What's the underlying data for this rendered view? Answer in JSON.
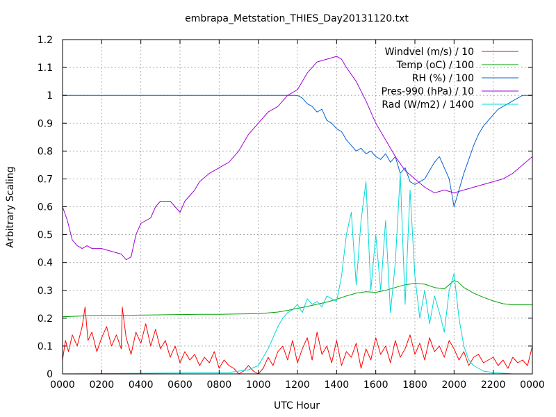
{
  "chart_data": {
    "type": "line",
    "title": "embrapa_Metstation_THIES_Day20131120.txt",
    "xlabel": "UTC Hour",
    "ylabel": "Arbitrary Scaling",
    "xlim": [
      0,
      24
    ],
    "ylim": [
      0,
      1.2
    ],
    "grid": true,
    "legend_position": "top-right",
    "x_tick_labels": [
      "0000",
      "0200",
      "0400",
      "0600",
      "0800",
      "1000",
      "1200",
      "1400",
      "1600",
      "1800",
      "2000",
      "2200",
      "0000"
    ],
    "y_tick_labels": [
      "0",
      "0.1",
      "0.2",
      "0.3",
      "0.4",
      "0.5",
      "0.6",
      "0.7",
      "0.8",
      "0.9",
      "1",
      "1.1",
      "1.2"
    ],
    "series": [
      {
        "name": "Windvel (m/s) / 10",
        "color": "#ff0000",
        "x": [
          0,
          0.15,
          0.3,
          0.5,
          0.75,
          1.0,
          1.15,
          1.3,
          1.5,
          1.75,
          2.0,
          2.25,
          2.5,
          2.75,
          3.0,
          3.05,
          3.25,
          3.5,
          3.75,
          4.0,
          4.25,
          4.5,
          4.75,
          5.0,
          5.25,
          5.5,
          5.75,
          6.0,
          6.25,
          6.5,
          6.75,
          7.0,
          7.25,
          7.5,
          7.75,
          8.0,
          8.25,
          8.5,
          8.75,
          9.0,
          9.25,
          9.5,
          9.75,
          10.0,
          10.25,
          10.5,
          10.75,
          11.0,
          11.25,
          11.5,
          11.75,
          12.0,
          12.25,
          12.5,
          12.75,
          13.0,
          13.25,
          13.5,
          13.75,
          14.0,
          14.25,
          14.5,
          14.75,
          15.0,
          15.25,
          15.5,
          15.75,
          16.0,
          16.25,
          16.5,
          16.75,
          17.0,
          17.25,
          17.5,
          17.75,
          18.0,
          18.25,
          18.5,
          18.75,
          19.0,
          19.25,
          19.5,
          19.75,
          20.0,
          20.25,
          20.5,
          20.75,
          21.0,
          21.25,
          21.5,
          21.75,
          22.0,
          22.25,
          22.5,
          22.75,
          23.0,
          23.25,
          23.5,
          23.75,
          24.0
        ],
        "y": [
          0.05,
          0.12,
          0.08,
          0.14,
          0.1,
          0.17,
          0.24,
          0.12,
          0.15,
          0.08,
          0.13,
          0.17,
          0.1,
          0.14,
          0.09,
          0.24,
          0.13,
          0.07,
          0.15,
          0.11,
          0.18,
          0.1,
          0.16,
          0.09,
          0.12,
          0.06,
          0.1,
          0.04,
          0.08,
          0.05,
          0.07,
          0.03,
          0.06,
          0.04,
          0.08,
          0.02,
          0.05,
          0.03,
          0.02,
          0.0,
          0.01,
          0.03,
          0.01,
          0.0,
          0.02,
          0.06,
          0.03,
          0.08,
          0.1,
          0.05,
          0.12,
          0.04,
          0.09,
          0.13,
          0.05,
          0.15,
          0.07,
          0.1,
          0.04,
          0.12,
          0.03,
          0.08,
          0.06,
          0.11,
          0.02,
          0.09,
          0.05,
          0.13,
          0.07,
          0.1,
          0.04,
          0.12,
          0.06,
          0.09,
          0.14,
          0.07,
          0.11,
          0.05,
          0.13,
          0.08,
          0.1,
          0.06,
          0.12,
          0.09,
          0.05,
          0.08,
          0.03,
          0.06,
          0.07,
          0.04,
          0.05,
          0.06,
          0.03,
          0.05,
          0.02,
          0.06,
          0.04,
          0.05,
          0.03,
          0.1
        ]
      },
      {
        "name": "Temp (oC) / 100",
        "color": "#00a000",
        "x": [
          0,
          1,
          2,
          3,
          4,
          5,
          6,
          7,
          8,
          9,
          10,
          11,
          11.5,
          12,
          12.5,
          13,
          13.5,
          14,
          14.5,
          15,
          15.5,
          16,
          16.5,
          17,
          17.5,
          18,
          18.5,
          19,
          19.5,
          20,
          20.2,
          20.5,
          21,
          21.5,
          22,
          22.5,
          23,
          23.5,
          24
        ],
        "y": [
          0.205,
          0.208,
          0.21,
          0.21,
          0.211,
          0.212,
          0.213,
          0.214,
          0.214,
          0.215,
          0.216,
          0.222,
          0.228,
          0.235,
          0.242,
          0.25,
          0.258,
          0.268,
          0.28,
          0.29,
          0.295,
          0.293,
          0.3,
          0.31,
          0.32,
          0.325,
          0.322,
          0.31,
          0.305,
          0.335,
          0.33,
          0.31,
          0.29,
          0.275,
          0.262,
          0.252,
          0.248,
          0.248,
          0.248
        ]
      },
      {
        "name": "RH (%) / 100",
        "color": "#0060d0",
        "x": [
          0,
          12,
          12.25,
          12.5,
          12.75,
          13.0,
          13.25,
          13.5,
          13.75,
          14.0,
          14.25,
          14.5,
          14.75,
          15.0,
          15.25,
          15.5,
          15.75,
          16.0,
          16.25,
          16.5,
          16.75,
          17.0,
          17.25,
          17.5,
          17.75,
          18.0,
          18.25,
          18.5,
          18.75,
          19.0,
          19.25,
          19.5,
          19.75,
          20.0,
          20.25,
          20.5,
          20.75,
          21.0,
          21.25,
          21.5,
          21.75,
          22.0,
          22.25,
          22.5,
          22.75,
          23.0,
          23.25,
          23.5,
          24.0
        ],
        "y": [
          1.0,
          1.0,
          0.99,
          0.97,
          0.96,
          0.94,
          0.95,
          0.91,
          0.9,
          0.88,
          0.87,
          0.84,
          0.82,
          0.8,
          0.81,
          0.79,
          0.8,
          0.78,
          0.77,
          0.79,
          0.76,
          0.78,
          0.72,
          0.74,
          0.69,
          0.68,
          0.69,
          0.7,
          0.73,
          0.76,
          0.78,
          0.74,
          0.7,
          0.6,
          0.66,
          0.72,
          0.77,
          0.82,
          0.86,
          0.89,
          0.91,
          0.93,
          0.95,
          0.96,
          0.97,
          0.98,
          0.99,
          1.0,
          1.0
        ]
      },
      {
        "name": "Pres-990 (hPa) / 10",
        "color": "#a000d8",
        "x": [
          0,
          0.25,
          0.5,
          0.75,
          1.0,
          1.25,
          1.5,
          2.0,
          2.5,
          3.0,
          3.25,
          3.5,
          3.75,
          4.0,
          4.25,
          4.5,
          4.75,
          5.0,
          5.25,
          5.5,
          5.75,
          6.0,
          6.25,
          6.5,
          6.75,
          7.0,
          7.5,
          8.0,
          8.5,
          9.0,
          9.5,
          10.0,
          10.5,
          11.0,
          11.5,
          12.0,
          12.5,
          13.0,
          13.5,
          14.0,
          14.25,
          14.5,
          15.0,
          15.5,
          16.0,
          16.5,
          17.0,
          17.5,
          18.0,
          18.5,
          19.0,
          19.5,
          20.0,
          20.5,
          21.0,
          21.5,
          22.0,
          22.5,
          23.0,
          23.5,
          24.0
        ],
        "y": [
          0.6,
          0.55,
          0.48,
          0.46,
          0.45,
          0.46,
          0.45,
          0.45,
          0.44,
          0.43,
          0.41,
          0.42,
          0.5,
          0.54,
          0.55,
          0.56,
          0.6,
          0.62,
          0.62,
          0.62,
          0.6,
          0.58,
          0.62,
          0.64,
          0.66,
          0.69,
          0.72,
          0.74,
          0.76,
          0.8,
          0.86,
          0.9,
          0.94,
          0.96,
          1.0,
          1.02,
          1.08,
          1.12,
          1.13,
          1.14,
          1.13,
          1.1,
          1.05,
          0.98,
          0.9,
          0.84,
          0.78,
          0.73,
          0.7,
          0.67,
          0.65,
          0.66,
          0.65,
          0.66,
          0.67,
          0.68,
          0.69,
          0.7,
          0.72,
          0.75,
          0.78
        ]
      },
      {
        "name": "Rad (W/m2) / 1400",
        "color": "#00d8d8",
        "x": [
          0,
          8.5,
          9.0,
          9.5,
          10.0,
          10.25,
          10.5,
          10.75,
          11.0,
          11.25,
          11.5,
          11.75,
          12.0,
          12.25,
          12.5,
          12.75,
          13.0,
          13.25,
          13.5,
          13.75,
          14.0,
          14.25,
          14.5,
          14.75,
          15.0,
          15.25,
          15.5,
          15.75,
          16.0,
          16.25,
          16.5,
          16.75,
          17.0,
          17.25,
          17.5,
          17.75,
          18.0,
          18.25,
          18.5,
          18.75,
          19.0,
          19.25,
          19.5,
          19.75,
          20.0,
          20.25,
          20.5,
          20.75,
          21.0,
          21.5,
          22.0,
          23.0,
          23.5,
          24.0
        ],
        "y": [
          0.0,
          0.005,
          0.01,
          0.015,
          0.03,
          0.06,
          0.09,
          0.13,
          0.17,
          0.2,
          0.22,
          0.23,
          0.25,
          0.22,
          0.27,
          0.25,
          0.26,
          0.24,
          0.28,
          0.27,
          0.26,
          0.35,
          0.5,
          0.58,
          0.32,
          0.55,
          0.69,
          0.3,
          0.5,
          0.3,
          0.55,
          0.22,
          0.4,
          0.72,
          0.25,
          0.66,
          0.35,
          0.2,
          0.3,
          0.18,
          0.28,
          0.22,
          0.15,
          0.3,
          0.36,
          0.2,
          0.1,
          0.05,
          0.03,
          0.01,
          0.005,
          0.0,
          0.0,
          0.0
        ]
      }
    ]
  }
}
